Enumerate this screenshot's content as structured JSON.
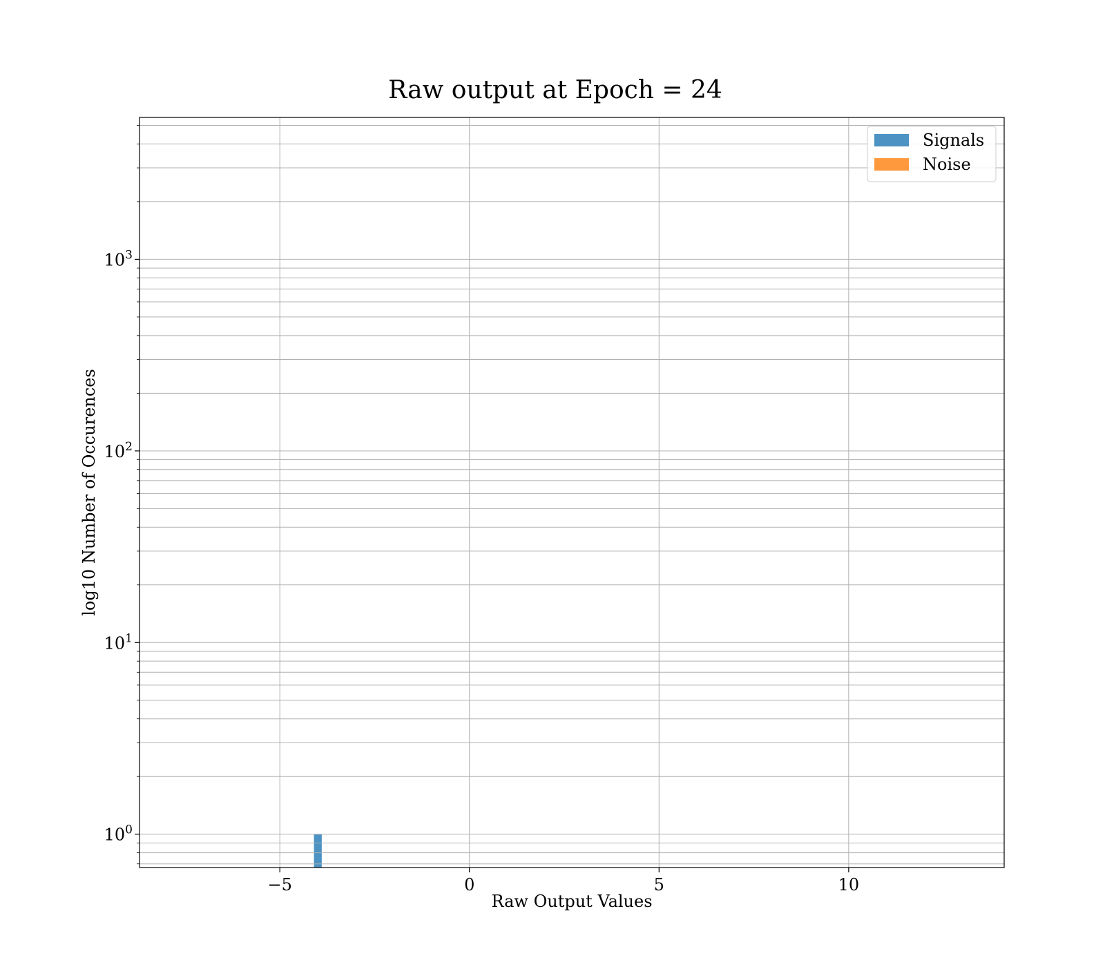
{
  "chart_data": {
    "type": "bar",
    "title": "Raw output at Epoch = 24",
    "xlabel": "Raw Output Values",
    "ylabel": "log10 Number of Occurences",
    "xlim": [
      -8.7,
      14.1
    ],
    "ylim": [
      0.67,
      5500
    ],
    "yscale": "log",
    "grid": true,
    "legend_position": "top-right",
    "xticks": [
      {
        "value": -5,
        "label": "−5"
      },
      {
        "value": 0,
        "label": "0"
      },
      {
        "value": 5,
        "label": "5"
      },
      {
        "value": 10,
        "label": "10"
      }
    ],
    "yticks": [
      {
        "value": 1,
        "base": "10",
        "exp": "0"
      },
      {
        "value": 10,
        "base": "10",
        "exp": "1"
      },
      {
        "value": 100,
        "base": "10",
        "exp": "2"
      },
      {
        "value": 1000,
        "base": "10",
        "exp": "3"
      }
    ],
    "series": [
      {
        "name": "Signals",
        "color": "#1f77b4",
        "opacity": 0.8,
        "bin_start": -7.5,
        "bin_width": 0.2,
        "values": [
          0,
          0,
          0,
          0,
          0,
          0,
          0,
          0,
          0,
          0,
          0,
          0,
          0,
          0,
          0,
          0,
          0,
          1,
          0,
          0,
          0,
          0,
          0,
          0,
          0,
          0,
          0,
          0,
          0,
          0,
          0,
          0,
          0,
          0,
          0,
          0,
          0,
          0,
          0,
          0,
          0,
          0,
          0,
          0,
          0,
          0,
          0,
          0,
          0,
          0,
          0,
          0,
          0,
          0,
          0,
          0,
          0,
          0,
          0,
          0,
          0,
          0,
          0,
          0,
          0,
          0,
          0,
          0,
          0,
          0,
          0,
          0,
          0,
          0,
          0,
          0,
          0,
          0,
          0,
          0,
          0,
          0,
          0,
          0,
          0,
          0,
          0,
          0,
          0,
          0,
          0,
          0,
          0,
          0,
          0,
          0,
          0,
          0,
          0,
          0,
          0,
          0,
          0,
          0
        ]
      },
      {
        "name": "Noise",
        "color": "#ff7f0e",
        "opacity": 0.8,
        "bin_start": -7.5,
        "bin_width": 0.2,
        "values": [
          0,
          0,
          0,
          0,
          0,
          0,
          0,
          0,
          0,
          0,
          0,
          0,
          0,
          0,
          0,
          0,
          0,
          0,
          0,
          0,
          0,
          0,
          0,
          0,
          0,
          0,
          0,
          0,
          0,
          0,
          0,
          0,
          0,
          0,
          0,
          0,
          0,
          0,
          0,
          0,
          0,
          0,
          0,
          0,
          0,
          0,
          0,
          0,
          0,
          0,
          0,
          0,
          0,
          0,
          0,
          0,
          0,
          0,
          0,
          0,
          0,
          0,
          0,
          0,
          0,
          0,
          0,
          0,
          0,
          0,
          0,
          0,
          0,
          0,
          0,
          0,
          0,
          0,
          0,
          0,
          0,
          0,
          0,
          0,
          0,
          0,
          0,
          0,
          0,
          0,
          0,
          0,
          0,
          0,
          0,
          0,
          0,
          0,
          0,
          0,
          0,
          0,
          0,
          0
        ]
      }
    ]
  }
}
